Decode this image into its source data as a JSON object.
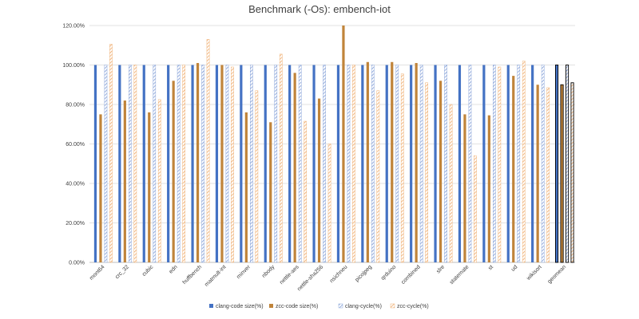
{
  "chart_data": {
    "type": "bar",
    "title": "Benchmark (-Os): embench-iot",
    "xlabel": "",
    "ylabel": "",
    "ylim": [
      0,
      120
    ],
    "yticks": [
      0,
      20,
      40,
      60,
      80,
      100,
      120
    ],
    "ytick_labels": [
      "0.00%",
      "20.00%",
      "40.00%",
      "60.00%",
      "80.00%",
      "100.00%",
      "120.00%"
    ],
    "grid": true,
    "legend_position": "bottom",
    "categories": [
      "mont64",
      "crc_32",
      "cubic",
      "edn",
      "huffbench",
      "matmult-int",
      "minver",
      "nbody",
      "nettle-aes",
      "nettle-sha256",
      "nsichneu",
      "picojpeg",
      "qrduino",
      "combined",
      "slre",
      "statemate",
      "st",
      "ud",
      "wikisort",
      "geomean"
    ],
    "series": [
      {
        "name": "clang-code size(%)",
        "color": "#4472c4",
        "pattern": "solid",
        "values": [
          100,
          100,
          100,
          100,
          100,
          100,
          100,
          100,
          100,
          100,
          100,
          100,
          100,
          100,
          100,
          100,
          100,
          100,
          100,
          100
        ]
      },
      {
        "name": "zcc-code size(%)",
        "color": "#c0843a",
        "pattern": "solid",
        "values": [
          75,
          82,
          76,
          92,
          101,
          100,
          76,
          71,
          96,
          83,
          120,
          101.5,
          101.5,
          101,
          92,
          75,
          74.5,
          94.5,
          90,
          90
        ]
      },
      {
        "name": "clang-cycle(%)",
        "color": "#8fa9dc",
        "pattern": "hatch",
        "values": [
          100,
          100,
          100,
          100,
          100,
          100,
          100,
          100,
          100,
          100,
          100,
          100,
          100,
          100,
          100,
          100,
          100,
          100,
          100,
          100
        ]
      },
      {
        "name": "zcc-cycle(%)",
        "color": "#f0b47a",
        "pattern": "hatch",
        "values": [
          110.5,
          100,
          82.5,
          100,
          113,
          99,
          87,
          105.5,
          71.5,
          60,
          100,
          87,
          95.5,
          91,
          80,
          54,
          99,
          102,
          88.5,
          91
        ]
      }
    ]
  }
}
